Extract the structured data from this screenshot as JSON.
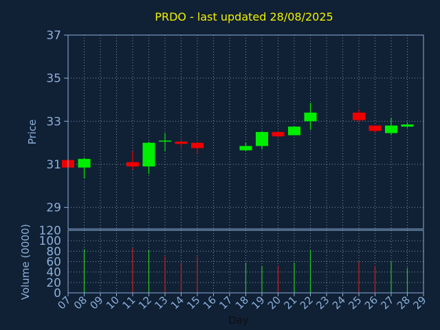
{
  "title": "PRDO - last updated 28/08/2025",
  "chart_data": [
    {
      "type": "candlestick",
      "ylabel": "Price",
      "ylim": [
        28,
        37
      ],
      "yticks": [
        29,
        31,
        33,
        35,
        37
      ],
      "grid": true,
      "x_tick_labels": [
        "07",
        "08",
        "09",
        "10",
        "11",
        "12",
        "13",
        "14",
        "15",
        "16",
        "17",
        "18",
        "19",
        "20",
        "21",
        "22",
        "23",
        "24",
        "25",
        "26",
        "27",
        "28",
        "29"
      ],
      "candles": [
        {
          "day": "07",
          "open": 31.2,
          "close": 30.85,
          "high": 31.25,
          "low": 30.8
        },
        {
          "day": "08",
          "open": 30.85,
          "close": 31.25,
          "high": 31.3,
          "low": 30.35
        },
        {
          "day": "11",
          "open": 31.1,
          "close": 30.9,
          "high": 31.6,
          "low": 30.75
        },
        {
          "day": "12",
          "open": 30.9,
          "close": 32.0,
          "high": 32.05,
          "low": 30.55
        },
        {
          "day": "13",
          "open": 32.1,
          "close": 32.1,
          "high": 32.45,
          "low": 31.6
        },
        {
          "day": "14",
          "open": 32.05,
          "close": 31.95,
          "high": 32.1,
          "low": 31.8
        },
        {
          "day": "15",
          "open": 32.0,
          "close": 31.75,
          "high": 32.0,
          "low": 31.5
        },
        {
          "day": "18",
          "open": 31.65,
          "close": 31.85,
          "high": 32.0,
          "low": 31.6
        },
        {
          "day": "19",
          "open": 31.85,
          "close": 32.5,
          "high": 32.55,
          "low": 31.7
        },
        {
          "day": "20",
          "open": 32.5,
          "close": 32.3,
          "high": 32.5,
          "low": 32.25
        },
        {
          "day": "21",
          "open": 32.35,
          "close": 32.75,
          "high": 32.75,
          "low": 32.35
        },
        {
          "day": "22",
          "open": 33.0,
          "close": 33.4,
          "high": 33.85,
          "low": 32.6
        },
        {
          "day": "25",
          "open": 33.4,
          "close": 33.05,
          "high": 33.55,
          "low": 32.95
        },
        {
          "day": "26",
          "open": 32.8,
          "close": 32.55,
          "high": 32.8,
          "low": 32.45
        },
        {
          "day": "27",
          "open": 32.45,
          "close": 32.8,
          "high": 33.15,
          "low": 32.35
        },
        {
          "day": "28",
          "open": 32.75,
          "close": 32.85,
          "high": 32.95,
          "low": 32.7
        }
      ]
    },
    {
      "type": "bar",
      "ylabel": "Volume (0000)",
      "xlabel": "Day",
      "ylim": [
        0,
        120
      ],
      "yticks": [
        0,
        20,
        40,
        60,
        80,
        100,
        120
      ],
      "grid": true,
      "bars": [
        {
          "day": "08",
          "value": 84,
          "color": "#22cc22"
        },
        {
          "day": "11",
          "value": 86,
          "color": "#cc2222"
        },
        {
          "day": "12",
          "value": 82,
          "color": "#22cc22"
        },
        {
          "day": "13",
          "value": 70,
          "color": "#cc2222"
        },
        {
          "day": "14",
          "value": 58,
          "color": "#cc2222"
        },
        {
          "day": "15",
          "value": 70,
          "color": "#cc2222"
        },
        {
          "day": "18",
          "value": 58,
          "color": "#22cc22"
        },
        {
          "day": "19",
          "value": 52,
          "color": "#22cc22"
        },
        {
          "day": "20",
          "value": 52,
          "color": "#cc2222"
        },
        {
          "day": "21",
          "value": 58,
          "color": "#22cc22"
        },
        {
          "day": "22",
          "value": 82,
          "color": "#22cc22"
        },
        {
          "day": "25",
          "value": 60,
          "color": "#cc2222"
        },
        {
          "day": "26",
          "value": 52,
          "color": "#cc2222"
        },
        {
          "day": "27",
          "value": 60,
          "color": "#22cc22"
        },
        {
          "day": "28",
          "value": 48,
          "color": "#22cc22"
        }
      ]
    }
  ],
  "colors": {
    "background": "#102035",
    "plot_background": "#112135",
    "axis": "#8cb0d8",
    "grid": "#7d93ad",
    "title": "#f2f200",
    "up": "#00ee00",
    "down": "#ee0000"
  }
}
